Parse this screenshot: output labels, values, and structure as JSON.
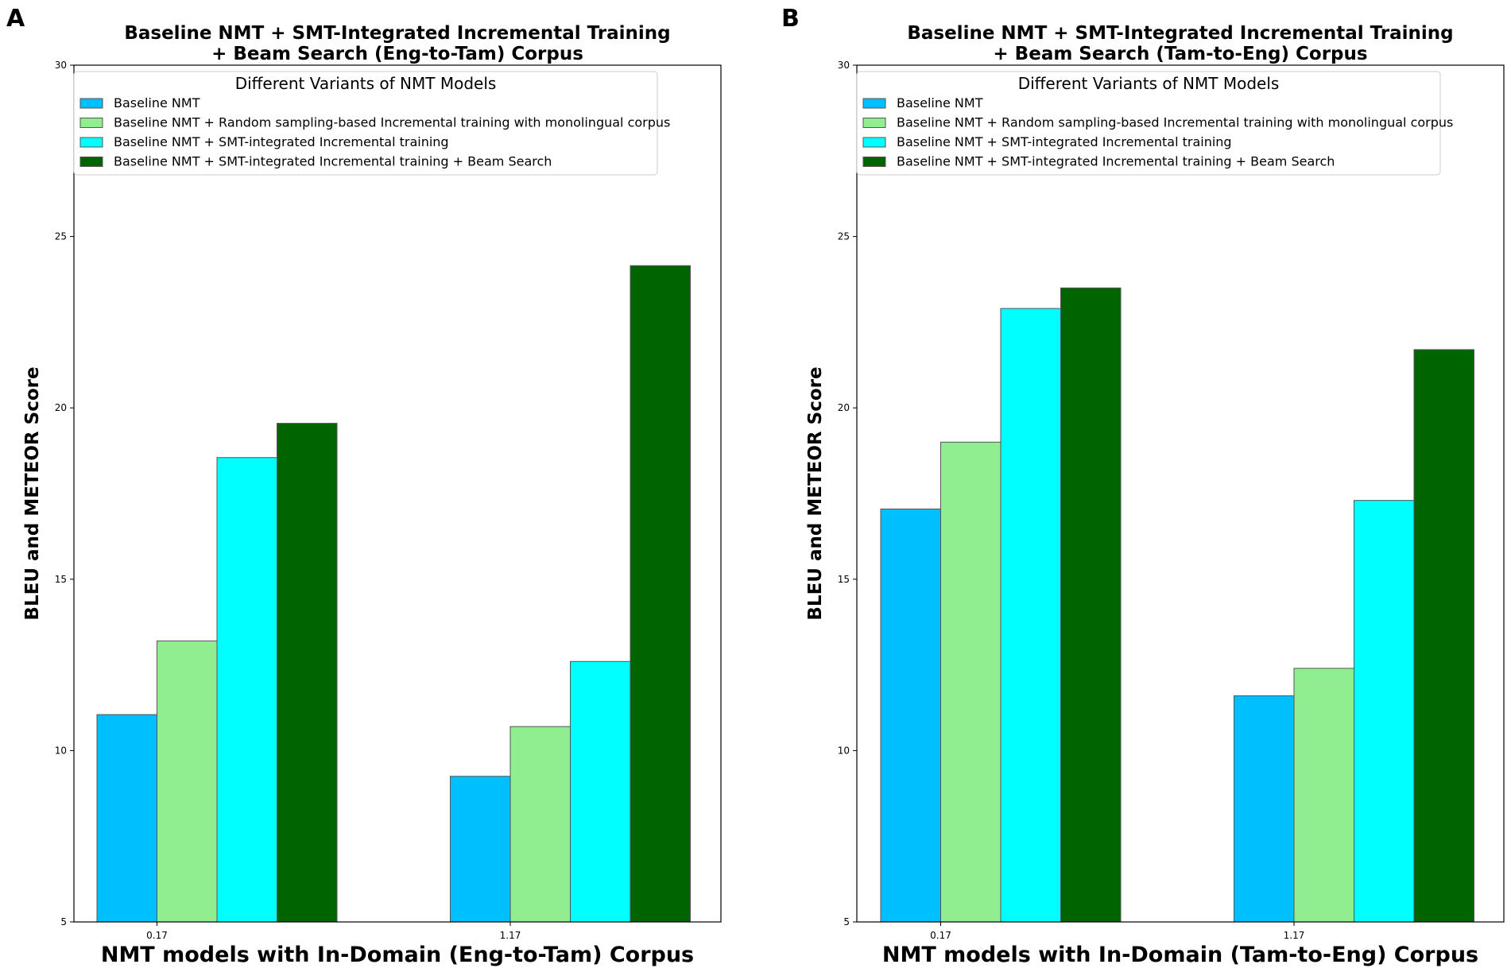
{
  "chart_data": [
    {
      "type": "bar",
      "panel_label": "A",
      "title_lines": [
        "Baseline NMT + SMT-Integrated Incremental Training",
        "+ Beam Search (Eng-to-Tam) Corpus"
      ],
      "xlabel": "NMT models with In-Domain (Eng-to-Tam) Corpus",
      "ylabel": "BLEU and METEOR Score",
      "ylim": [
        5,
        30
      ],
      "yticks": [
        "5",
        "10",
        "15",
        "20",
        "25",
        "30"
      ],
      "categories": [
        "0.17",
        "1.17"
      ],
      "legend_title": "Different Variants of NMT Models",
      "legend_position": "top",
      "series": [
        {
          "name": "Baseline NMT",
          "color": "#00BFFF",
          "values": [
            11.05,
            9.25
          ]
        },
        {
          "name": "Baseline NMT + Random sampling-based Incremental training with monolingual corpus",
          "color": "#90EE90",
          "values": [
            13.2,
            10.7
          ]
        },
        {
          "name": "Baseline NMT + SMT-integrated Incremental training",
          "color": "#00FFFF",
          "values": [
            18.55,
            12.6
          ]
        },
        {
          "name": "Baseline NMT + SMT-integrated Incremental training + Beam Search",
          "color": "#006400",
          "values": [
            19.55,
            24.15
          ]
        }
      ]
    },
    {
      "type": "bar",
      "panel_label": "B",
      "title_lines": [
        "Baseline NMT + SMT-Integrated Incremental Training",
        "+ Beam Search (Tam-to-Eng) Corpus"
      ],
      "xlabel": "NMT models with In-Domain (Tam-to-Eng) Corpus",
      "ylabel": "BLEU and METEOR Score",
      "ylim": [
        5,
        30
      ],
      "yticks": [
        "5",
        "10",
        "15",
        "20",
        "25",
        "30"
      ],
      "categories": [
        "0.17",
        "1.17"
      ],
      "legend_title": "Different Variants of NMT Models",
      "legend_position": "top",
      "series": [
        {
          "name": "Baseline NMT",
          "color": "#00BFFF",
          "values": [
            17.05,
            11.6
          ]
        },
        {
          "name": "Baseline NMT + Random sampling-based Incremental training with monolingual corpus",
          "color": "#90EE90",
          "values": [
            19.0,
            12.4
          ]
        },
        {
          "name": "Baseline NMT + SMT-integrated Incremental training",
          "color": "#00FFFF",
          "values": [
            22.9,
            17.3
          ]
        },
        {
          "name": "Baseline NMT + SMT-integrated Incremental training + Beam Search",
          "color": "#006400",
          "values": [
            23.5,
            21.7
          ]
        }
      ]
    }
  ]
}
